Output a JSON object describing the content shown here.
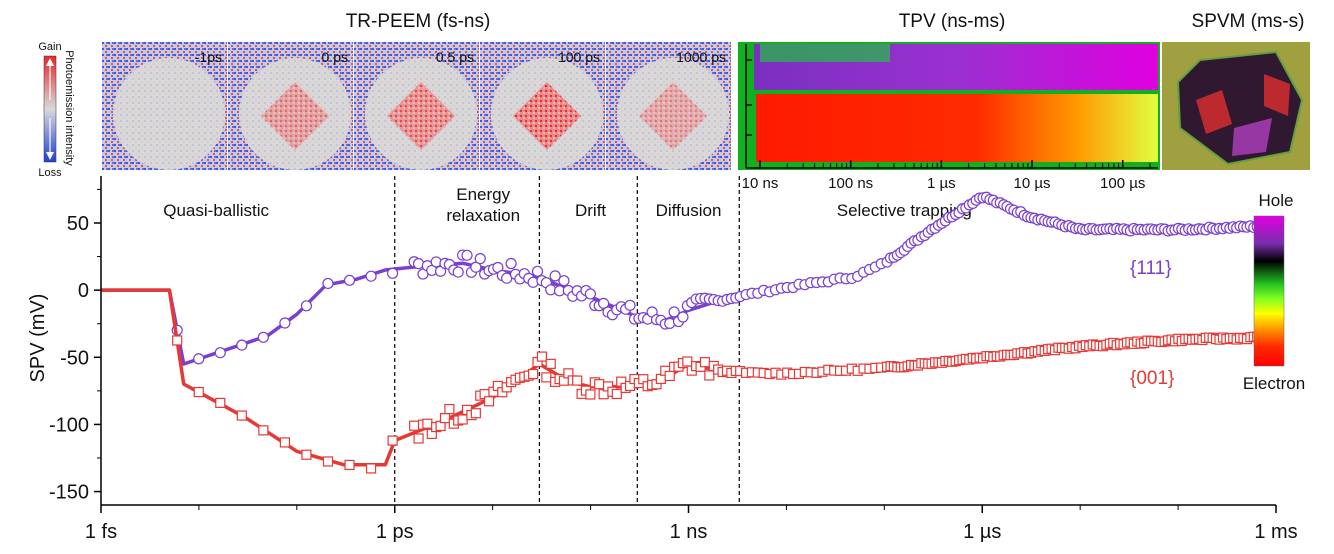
{
  "panels": {
    "trpeem_title": "TR-PEEM (fs-ns)",
    "tpv_title": "TPV (ns-ms)",
    "spvm_title": "SPVM (ms-s)",
    "colorbar_gain": "Gain",
    "colorbar_loss": "Loss",
    "colorbar_axis": "Photoemission intensity",
    "frames": [
      "-1ps",
      "0 ps",
      "0.5 ps",
      "100 ps",
      "1000 ps"
    ],
    "frame_intensity": [
      0.0,
      0.6,
      0.75,
      0.9,
      0.5
    ],
    "tpv_ticks": [
      "10 ns",
      "100 ns",
      "1 µs",
      "10 µs",
      "100 µs"
    ],
    "colors": {
      "gain": "#e8262a",
      "loss": "#1f3fd8",
      "neutral": "#d9d9d9"
    }
  },
  "chart_data": {
    "type": "line",
    "ylabel": "SPV (mV)",
    "xscale": "log",
    "xlim": [
      1e-15,
      0.001
    ],
    "ylim": [
      -160,
      85
    ],
    "xticks": [
      {
        "value": 1e-15,
        "label": "1 fs"
      },
      {
        "value": 1e-12,
        "label": "1 ps"
      },
      {
        "value": 1e-09,
        "label": "1 ns"
      },
      {
        "value": 1e-06,
        "label": "1 µs"
      },
      {
        "value": 0.001,
        "label": "1 ms"
      }
    ],
    "yticks": [
      -150,
      -100,
      -50,
      0,
      50
    ],
    "regions": [
      {
        "label": "Quasi-ballistic",
        "x_center": 1.5e-14
      },
      {
        "label": "Energy\nrelaxation",
        "x_center": 8e-12
      },
      {
        "label": "Drift",
        "x_center": 1e-10
      },
      {
        "label": "Diffusion",
        "x_center": 1e-09
      },
      {
        "label": "Selective trapping",
        "x_center": 1.6e-07
      }
    ],
    "dividers": [
      1e-12,
      3e-11,
      3e-10,
      3.3e-09
    ],
    "series": [
      {
        "name": "{111}",
        "color": "#7a3fd0",
        "marker": "circle",
        "points": [
          [
            1e-15,
            0
          ],
          [
            5e-15,
            0
          ],
          [
            7e-15,
            -55
          ],
          [
            5e-14,
            -34
          ],
          [
            1e-13,
            -18
          ],
          [
            2e-13,
            4
          ],
          [
            4e-13,
            8
          ],
          [
            8e-13,
            15
          ],
          [
            2e-12,
            18
          ],
          [
            5e-12,
            20
          ],
          [
            1e-11,
            15
          ],
          [
            3e-11,
            10
          ],
          [
            6e-11,
            0
          ],
          [
            1e-10,
            -5
          ],
          [
            3e-10,
            -20
          ],
          [
            6e-10,
            -22
          ],
          [
            1e-09,
            -15
          ],
          [
            2e-09,
            -8
          ],
          [
            5e-09,
            -2
          ],
          [
            1e-08,
            2
          ],
          [
            5e-08,
            10
          ],
          [
            1e-07,
            20
          ],
          [
            3e-07,
            45
          ],
          [
            1e-06,
            70
          ],
          [
            3e-06,
            55
          ],
          [
            1e-05,
            45
          ],
          [
            0.0001,
            45
          ],
          [
            0.001,
            48
          ]
        ]
      },
      {
        "name": "{001}",
        "color": "#e53935",
        "marker": "square",
        "points": [
          [
            1e-15,
            0
          ],
          [
            5e-15,
            0
          ],
          [
            7e-15,
            -70
          ],
          [
            3e-14,
            -95
          ],
          [
            1e-13,
            -120
          ],
          [
            3e-13,
            -130
          ],
          [
            8e-13,
            -130
          ],
          [
            1e-12,
            -112
          ],
          [
            3e-12,
            -98
          ],
          [
            1e-11,
            -80
          ],
          [
            3e-11,
            -55
          ],
          [
            6e-11,
            -68
          ],
          [
            1e-10,
            -72
          ],
          [
            3e-10,
            -72
          ],
          [
            6e-10,
            -65
          ],
          [
            1e-09,
            -55
          ],
          [
            2e-09,
            -60
          ],
          [
            5e-09,
            -62
          ],
          [
            1e-08,
            -62
          ],
          [
            1e-07,
            -58
          ],
          [
            1e-06,
            -50
          ],
          [
            1e-05,
            -42
          ],
          [
            0.0001,
            -37
          ],
          [
            0.001,
            -35
          ]
        ]
      }
    ],
    "legend_colorbar": {
      "top": "Hole",
      "bottom": "Electron",
      "stops": [
        "#e000e0",
        "#7a2db0",
        "#000000",
        "#22c020",
        "#80ff20",
        "#ffff00",
        "#ff9900",
        "#ff2a00",
        "#ff0000"
      ]
    }
  }
}
